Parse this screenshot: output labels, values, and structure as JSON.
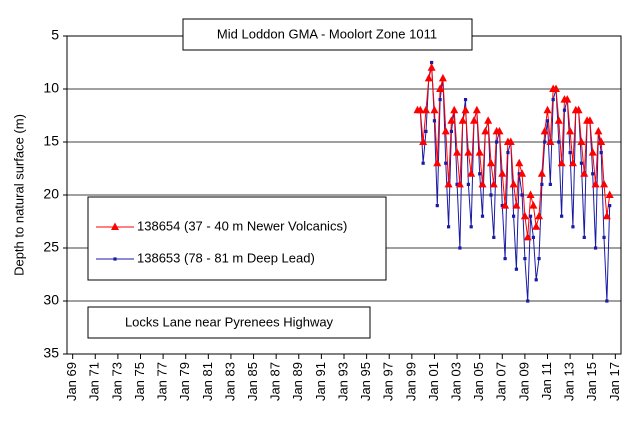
{
  "chart_data": {
    "type": "line",
    "title": "Mid Loddon GMA - Moolort Zone 1011",
    "annotation": "Locks Lane near Pyrenees Highway",
    "y_label": "Depth to natural surface (m)",
    "ylim": [
      5,
      35
    ],
    "y_inverted": true,
    "yticks": [
      5,
      10,
      15,
      20,
      25,
      30,
      35
    ],
    "xlim": [
      "Jul 68",
      "Jul 17"
    ],
    "xticks": [
      "Jan 69",
      "Jan 71",
      "Jan 73",
      "Jan 75",
      "Jan 77",
      "Jan 79",
      "Jan 81",
      "Jan 83",
      "Jan 85",
      "Jan 87",
      "Jan 89",
      "Jan 91",
      "Jan 93",
      "Jan 95",
      "Jan 97",
      "Jan 99",
      "Jan 01",
      "Jan 03",
      "Jan 05",
      "Jan 07",
      "Jan 09",
      "Jan 11",
      "Jan 13",
      "Jan 15",
      "Jan 17"
    ],
    "grid": true,
    "x": [
      "Jul 99",
      "Oct 99",
      "Jan 00",
      "Apr 00",
      "Jul 00",
      "Oct 00",
      "Jan 01",
      "Apr 01",
      "Jul 01",
      "Oct 01",
      "Jan 02",
      "Apr 02",
      "Jul 02",
      "Oct 02",
      "Jan 03",
      "Apr 03",
      "Jul 03",
      "Oct 03",
      "Jan 04",
      "Apr 04",
      "Jul 04",
      "Oct 04",
      "Jan 05",
      "Apr 05",
      "Jul 05",
      "Oct 05",
      "Jan 06",
      "Apr 06",
      "Jul 06",
      "Oct 06",
      "Jan 07",
      "Apr 07",
      "Jul 07",
      "Oct 07",
      "Jan 08",
      "Apr 08",
      "Jul 08",
      "Oct 08",
      "Jan 09",
      "Apr 09",
      "Jul 09",
      "Oct 09",
      "Jan 10",
      "Apr 10",
      "Jul 10",
      "Oct 10",
      "Jan 11",
      "Apr 11",
      "Jul 11",
      "Oct 11",
      "Jan 12",
      "Apr 12",
      "Jul 12",
      "Oct 12",
      "Jan 13",
      "Apr 13",
      "Jul 13",
      "Oct 13",
      "Jan 14",
      "Apr 14",
      "Jul 14",
      "Oct 14",
      "Jan 15",
      "Apr 15",
      "Jul 15",
      "Oct 15",
      "Jan 16",
      "Apr 16",
      "Jul 16"
    ],
    "series": [
      {
        "name": "138653 (78 - 81 m Deep Lead)",
        "color": "#1a1aa6",
        "marker": "square",
        "values": [
          12,
          12,
          17,
          14,
          9,
          7.5,
          13,
          21,
          11,
          9,
          17,
          23,
          14,
          12,
          19,
          25,
          13,
          11,
          19,
          23,
          13,
          12,
          18,
          22,
          14,
          13,
          20,
          24,
          15,
          14,
          21,
          26,
          16,
          15,
          22,
          27,
          18,
          20,
          26,
          30,
          22,
          24,
          28,
          26,
          19,
          15,
          13,
          19,
          11,
          10,
          15,
          22,
          12,
          11,
          16,
          23,
          12,
          12,
          17,
          24,
          13,
          13,
          18,
          25,
          14,
          16,
          24,
          30,
          21
        ]
      },
      {
        "name": "138654 (37 - 40 m Newer Volcanics)",
        "color": "#ff0000",
        "marker": "triangle",
        "values": [
          12,
          12,
          15,
          12,
          9,
          8,
          12,
          17,
          10,
          9,
          14,
          19,
          13,
          12,
          16,
          19,
          13,
          12,
          16,
          18,
          13,
          12,
          16,
          19,
          14,
          13,
          17,
          19,
          14,
          14,
          18,
          21,
          15,
          15,
          19,
          21,
          17,
          18,
          22,
          24,
          20,
          21,
          23,
          22,
          18,
          14,
          12,
          15,
          10,
          10,
          13,
          17,
          11,
          11,
          14,
          17,
          12,
          12,
          15,
          18,
          13,
          13,
          16,
          19,
          14,
          15,
          19,
          22,
          20
        ]
      }
    ]
  }
}
